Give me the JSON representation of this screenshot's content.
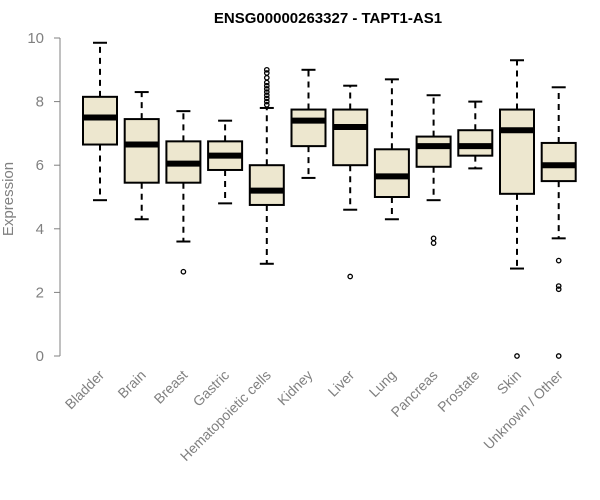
{
  "chart_data": {
    "type": "boxplot",
    "title": "ENSG00000263327 - TAPT1-AS1",
    "xlabel": "",
    "ylabel": "Expression",
    "ylim": [
      0,
      10
    ],
    "yticks": [
      0,
      2,
      4,
      6,
      8,
      10
    ],
    "box_color": "#ede7cf",
    "categories": [
      "Bladder",
      "Brain",
      "Breast",
      "Gastric",
      "Hematopoietic cells",
      "Kidney",
      "Liver",
      "Lung",
      "Pancreas",
      "Prostate",
      "Skin",
      "Unknown / Other"
    ],
    "series": [
      {
        "name": "Bladder",
        "min": 4.9,
        "q1": 6.65,
        "median": 7.5,
        "q3": 8.15,
        "max": 9.85,
        "outliers": []
      },
      {
        "name": "Brain",
        "min": 4.3,
        "q1": 5.45,
        "median": 6.65,
        "q3": 7.45,
        "max": 8.3,
        "outliers": []
      },
      {
        "name": "Breast",
        "min": 3.6,
        "q1": 5.45,
        "median": 6.05,
        "q3": 6.75,
        "max": 7.7,
        "outliers": [
          2.65
        ]
      },
      {
        "name": "Gastric",
        "min": 4.8,
        "q1": 5.85,
        "median": 6.3,
        "q3": 6.75,
        "max": 7.4,
        "outliers": []
      },
      {
        "name": "Hematopoietic cells",
        "min": 2.9,
        "q1": 4.75,
        "median": 5.2,
        "q3": 6.0,
        "max": 7.8,
        "outliers": [
          7.9,
          8.0,
          8.1,
          8.2,
          8.3,
          8.4,
          8.5,
          8.6,
          8.75,
          8.9,
          9.0
        ]
      },
      {
        "name": "Kidney",
        "min": 5.6,
        "q1": 6.6,
        "median": 7.4,
        "q3": 7.75,
        "max": 9.0,
        "outliers": []
      },
      {
        "name": "Liver",
        "min": 4.6,
        "q1": 6.0,
        "median": 7.2,
        "q3": 7.75,
        "max": 8.5,
        "outliers": [
          2.5
        ]
      },
      {
        "name": "Lung",
        "min": 4.3,
        "q1": 5.0,
        "median": 5.65,
        "q3": 6.5,
        "max": 8.7,
        "outliers": []
      },
      {
        "name": "Pancreas",
        "min": 4.9,
        "q1": 5.95,
        "median": 6.6,
        "q3": 6.9,
        "max": 8.2,
        "outliers": [
          3.55,
          3.7
        ]
      },
      {
        "name": "Prostate",
        "min": 5.9,
        "q1": 6.3,
        "median": 6.6,
        "q3": 7.1,
        "max": 8.0,
        "outliers": []
      },
      {
        "name": "Skin",
        "min": 2.75,
        "q1": 5.1,
        "median": 7.1,
        "q3": 7.75,
        "max": 9.3,
        "outliers": [
          0.0
        ]
      },
      {
        "name": "Unknown / Other",
        "min": 3.7,
        "q1": 5.5,
        "median": 6.0,
        "q3": 6.7,
        "max": 8.45,
        "outliers": [
          0.0,
          2.1,
          2.2,
          3.0
        ]
      }
    ]
  }
}
